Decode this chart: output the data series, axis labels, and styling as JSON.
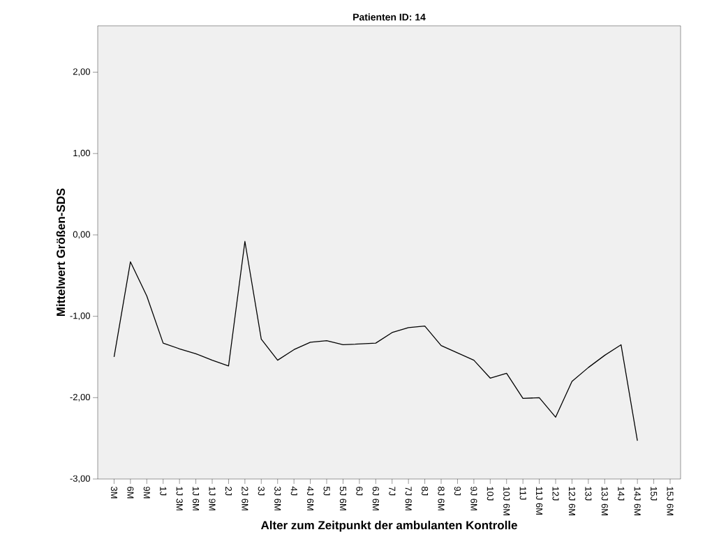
{
  "chart_data": {
    "type": "line",
    "title": "Patienten ID: 14",
    "xlabel": "Alter zum Zeitpunkt der ambulanten Kontrolle",
    "ylabel": "Mittelwert Größen-SDS",
    "categories": [
      "3M",
      "6M",
      "9M",
      "1J",
      "1J 3M",
      "1J 6M",
      "1J 9M",
      "2J",
      "2J 6M",
      "3J",
      "3J 6M",
      "4J",
      "4J 6M",
      "5J",
      "5J 6M",
      "6J",
      "6J 6M",
      "7J",
      "7J 6M",
      "8J",
      "8J 6M",
      "9J",
      "9J 6M",
      "10J",
      "10J 6M",
      "11J",
      "11J 6M",
      "12J",
      "12J 6M",
      "13J",
      "13J 6M",
      "14J",
      "14J 6M",
      "15J",
      "15J 6M"
    ],
    "series": [
      {
        "color": "#000000",
        "values": [
          -1.5,
          -0.33,
          -0.75,
          -1.33,
          -1.4,
          -1.46,
          -1.54,
          -1.61,
          -0.08,
          -1.28,
          -1.54,
          -1.41,
          -1.32,
          -1.3,
          -1.35,
          -1.34,
          -1.33,
          -1.2,
          -1.14,
          -1.12,
          -1.36,
          -1.45,
          -1.54,
          -1.76,
          -1.7,
          -2.01,
          -2.0,
          -2.24,
          -1.8,
          -1.63,
          -1.48,
          -1.35,
          -2.53,
          null,
          null
        ]
      }
    ],
    "ylim": [
      -3,
      2.57
    ],
    "yticks": [
      {
        "value": -3,
        "label": "-3,00"
      },
      {
        "value": -2,
        "label": "-2,00"
      },
      {
        "value": -1,
        "label": "-1,00"
      },
      {
        "value": 0,
        "label": "0,00"
      },
      {
        "value": 1,
        "label": "1,00"
      },
      {
        "value": 2,
        "label": "2,00"
      }
    ],
    "grid": false,
    "marker": "none",
    "line_style": "solid"
  }
}
